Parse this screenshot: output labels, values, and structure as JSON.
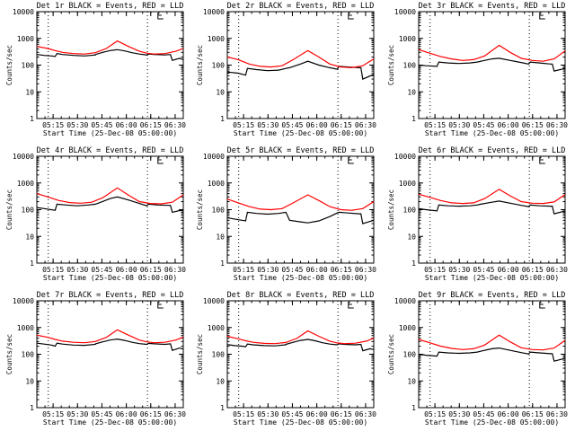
{
  "chart_data": [
    {
      "type": "line",
      "title": "Det 1r BLACK = Events, RED = LLD",
      "xlabel": "Start Time (25-Dec-08 05:00:00)",
      "ylabel": "Counts/sec",
      "yscale": "log",
      "ylim": [
        1,
        10000
      ],
      "xlim": [
        0.2,
        0.6
      ],
      "x_ticks": [
        "05:15",
        "05:30",
        "05:45",
        "06:00",
        "06:15",
        "06:30"
      ],
      "y_ticks": [
        "1",
        "10",
        "100",
        "1000",
        "10000"
      ],
      "vertical_dotted_lines": [
        "05:12",
        "06:13"
      ],
      "series": [
        {
          "color": "#000000",
          "x": [
            0.2,
            0.22,
            0.24,
            0.25,
            0.255,
            0.27,
            0.3,
            0.33,
            0.36,
            0.36,
            0.38,
            0.4,
            0.42,
            0.44,
            0.46,
            0.48,
            0.5,
            0.505,
            0.52,
            0.55,
            0.565,
            0.57,
            0.59,
            0.6
          ],
          "y": [
            250,
            230,
            220,
            210,
            270,
            250,
            230,
            220,
            240,
            250,
            300,
            350,
            380,
            340,
            290,
            260,
            240,
            260,
            250,
            240,
            250,
            150,
            180,
            160
          ]
        },
        {
          "color": "#ff0000",
          "x": [
            0.2,
            0.23,
            0.25,
            0.27,
            0.3,
            0.33,
            0.36,
            0.39,
            0.42,
            0.45,
            0.48,
            0.5,
            0.52,
            0.55,
            0.58,
            0.6
          ],
          "y": [
            500,
            420,
            350,
            300,
            270,
            260,
            290,
            420,
            800,
            500,
            330,
            280,
            260,
            270,
            330,
            420
          ]
        }
      ]
    },
    {
      "type": "line",
      "title": "Det 2r BLACK = Events, RED = LLD",
      "xlabel": "Start Time (25-Dec-08 05:00:00)",
      "ylabel": "Counts/sec",
      "yscale": "log",
      "ylim": [
        1,
        10000
      ],
      "xlim": [
        0.2,
        0.6
      ],
      "x_ticks": [
        "05:15",
        "05:30",
        "05:45",
        "06:00",
        "06:15",
        "06:30"
      ],
      "y_ticks": [
        "1",
        "10",
        "100",
        "1000",
        "10000"
      ],
      "vertical_dotted_lines": [
        "05:12",
        "06:13"
      ],
      "series": [
        {
          "color": "#000000",
          "x": [
            0.2,
            0.23,
            0.25,
            0.255,
            0.28,
            0.31,
            0.34,
            0.36,
            0.37,
            0.4,
            0.42,
            0.45,
            0.48,
            0.5,
            0.505,
            0.53,
            0.56,
            0.565,
            0.57,
            0.6
          ],
          "y": [
            55,
            50,
            42,
            75,
            68,
            62,
            65,
            75,
            80,
            110,
            140,
            100,
            80,
            70,
            90,
            85,
            80,
            80,
            30,
            45
          ]
        },
        {
          "color": "#ff0000",
          "x": [
            0.2,
            0.23,
            0.26,
            0.29,
            0.32,
            0.35,
            0.38,
            0.42,
            0.45,
            0.48,
            0.51,
            0.54,
            0.57,
            0.6
          ],
          "y": [
            200,
            160,
            110,
            90,
            85,
            95,
            160,
            350,
            200,
            110,
            85,
            80,
            95,
            170
          ]
        }
      ]
    },
    {
      "type": "line",
      "title": "Det 3r BLACK = Events, RED = LLD",
      "xlabel": "Start Time (25-Dec-08 05:00:00)",
      "ylabel": "Counts/sec",
      "yscale": "log",
      "ylim": [
        1,
        10000
      ],
      "xlim": [
        0.2,
        0.6
      ],
      "x_ticks": [
        "05:15",
        "05:30",
        "05:45",
        "06:00",
        "06:15",
        "06:30"
      ],
      "y_ticks": [
        "1",
        "10",
        "100",
        "1000",
        "10000"
      ],
      "vertical_dotted_lines": [
        "05:12",
        "06:13"
      ],
      "series": [
        {
          "color": "#000000",
          "x": [
            0.2,
            0.22,
            0.25,
            0.255,
            0.28,
            0.31,
            0.34,
            0.36,
            0.37,
            0.4,
            0.42,
            0.45,
            0.48,
            0.5,
            0.505,
            0.53,
            0.56,
            0.565,
            0.57,
            0.6
          ],
          "y": [
            100,
            95,
            90,
            130,
            120,
            115,
            120,
            130,
            140,
            170,
            180,
            150,
            125,
            110,
            130,
            120,
            110,
            110,
            60,
            75
          ]
        },
        {
          "color": "#ff0000",
          "x": [
            0.2,
            0.23,
            0.26,
            0.29,
            0.32,
            0.35,
            0.38,
            0.42,
            0.45,
            0.48,
            0.51,
            0.54,
            0.57,
            0.6
          ],
          "y": [
            380,
            280,
            210,
            170,
            150,
            160,
            220,
            550,
            300,
            180,
            150,
            140,
            170,
            340
          ]
        }
      ]
    },
    {
      "type": "line",
      "title": "Det 4r BLACK = Events, RED = LLD",
      "xlabel": "Start Time (25-Dec-08 05:00:00)",
      "ylabel": "Counts/sec",
      "yscale": "log",
      "ylim": [
        1,
        10000
      ],
      "xlim": [
        0.2,
        0.6
      ],
      "x_ticks": [
        "05:15",
        "05:30",
        "05:45",
        "06:00",
        "06:15",
        "06:30"
      ],
      "y_ticks": [
        "1",
        "10",
        "100",
        "1000",
        "10000"
      ],
      "vertical_dotted_lines": [
        "05:12",
        "06:13"
      ],
      "series": [
        {
          "color": "#000000",
          "x": [
            0.2,
            0.22,
            0.25,
            0.255,
            0.28,
            0.31,
            0.34,
            0.36,
            0.37,
            0.4,
            0.42,
            0.45,
            0.48,
            0.5,
            0.505,
            0.53,
            0.56,
            0.565,
            0.57,
            0.6
          ],
          "y": [
            120,
            110,
            95,
            160,
            150,
            140,
            150,
            160,
            180,
            260,
            300,
            230,
            170,
            140,
            160,
            150,
            145,
            145,
            80,
            100
          ]
        },
        {
          "color": "#ff0000",
          "x": [
            0.2,
            0.23,
            0.26,
            0.29,
            0.32,
            0.35,
            0.38,
            0.42,
            0.45,
            0.48,
            0.51,
            0.54,
            0.57,
            0.6
          ],
          "y": [
            400,
            300,
            220,
            185,
            175,
            190,
            280,
            650,
            350,
            200,
            170,
            165,
            190,
            360
          ]
        }
      ]
    },
    {
      "type": "line",
      "title": "Det 5r BLACK = Events, RED = LLD",
      "xlabel": "Start Time (25-Dec-08 05:00:00)",
      "ylabel": "Counts/sec",
      "yscale": "log",
      "ylim": [
        1,
        10000
      ],
      "xlim": [
        0.2,
        0.6
      ],
      "x_ticks": [
        "05:15",
        "05:30",
        "05:45",
        "06:00",
        "06:15",
        "06:30"
      ],
      "y_ticks": [
        "1",
        "10",
        "100",
        "1000",
        "10000"
      ],
      "vertical_dotted_lines": [
        "05:12",
        "06:13"
      ],
      "series": [
        {
          "color": "#000000",
          "x": [
            0.2,
            0.23,
            0.25,
            0.255,
            0.28,
            0.31,
            0.34,
            0.36,
            0.37,
            0.4,
            0.42,
            0.45,
            0.48,
            0.5,
            0.505,
            0.53,
            0.56,
            0.565,
            0.57,
            0.6
          ],
          "y": [
            50,
            42,
            38,
            80,
            72,
            68,
            72,
            80,
            40,
            35,
            32,
            38,
            55,
            75,
            80,
            75,
            70,
            70,
            30,
            40
          ]
        },
        {
          "color": "#ff0000",
          "x": [
            0.2,
            0.23,
            0.26,
            0.29,
            0.32,
            0.35,
            0.38,
            0.42,
            0.45,
            0.48,
            0.51,
            0.54,
            0.57,
            0.6
          ],
          "y": [
            250,
            180,
            130,
            105,
            100,
            110,
            180,
            360,
            220,
            130,
            100,
            95,
            110,
            200
          ]
        }
      ]
    },
    {
      "type": "line",
      "title": "Det 6r BLACK = Events, RED = LLD",
      "xlabel": "Start Time (25-Dec-08 05:00:00)",
      "ylabel": "Counts/sec",
      "yscale": "log",
      "ylim": [
        1,
        10000
      ],
      "xlim": [
        0.2,
        0.6
      ],
      "x_ticks": [
        "05:15",
        "05:30",
        "05:45",
        "06:00",
        "06:15",
        "06:30"
      ],
      "y_ticks": [
        "1",
        "10",
        "100",
        "1000",
        "10000"
      ],
      "vertical_dotted_lines": [
        "05:12",
        "06:13"
      ],
      "series": [
        {
          "color": "#000000",
          "x": [
            0.2,
            0.22,
            0.25,
            0.255,
            0.28,
            0.31,
            0.34,
            0.36,
            0.37,
            0.4,
            0.42,
            0.45,
            0.48,
            0.5,
            0.505,
            0.53,
            0.56,
            0.565,
            0.57,
            0.6
          ],
          "y": [
            110,
            100,
            90,
            150,
            140,
            135,
            140,
            150,
            160,
            190,
            210,
            175,
            145,
            130,
            150,
            140,
            135,
            135,
            70,
            90
          ]
        },
        {
          "color": "#ff0000",
          "x": [
            0.2,
            0.23,
            0.26,
            0.29,
            0.32,
            0.35,
            0.38,
            0.42,
            0.45,
            0.48,
            0.51,
            0.54,
            0.57,
            0.6
          ],
          "y": [
            380,
            290,
            220,
            180,
            170,
            180,
            260,
            580,
            330,
            200,
            175,
            170,
            195,
            370
          ]
        }
      ]
    },
    {
      "type": "line",
      "title": "Det 7r BLACK = Events, RED = LLD",
      "xlabel": "Start Time (25-Dec-08 05:00:00)",
      "ylabel": "Counts/sec",
      "yscale": "log",
      "ylim": [
        1,
        10000
      ],
      "xlim": [
        0.2,
        0.6
      ],
      "x_ticks": [
        "05:15",
        "05:30",
        "05:45",
        "06:00",
        "06:15",
        "06:30"
      ],
      "y_ticks": [
        "1",
        "10",
        "100",
        "1000",
        "10000"
      ],
      "vertical_dotted_lines": [
        "05:12",
        "06:13"
      ],
      "series": [
        {
          "color": "#000000",
          "x": [
            0.2,
            0.22,
            0.24,
            0.25,
            0.255,
            0.27,
            0.3,
            0.33,
            0.36,
            0.36,
            0.38,
            0.4,
            0.42,
            0.44,
            0.46,
            0.48,
            0.5,
            0.505,
            0.52,
            0.55,
            0.565,
            0.57,
            0.59,
            0.6
          ],
          "y": [
            260,
            240,
            220,
            200,
            260,
            240,
            220,
            215,
            235,
            245,
            290,
            340,
            370,
            330,
            280,
            250,
            235,
            255,
            245,
            235,
            245,
            140,
            170,
            155
          ]
        },
        {
          "color": "#ff0000",
          "x": [
            0.2,
            0.23,
            0.25,
            0.27,
            0.3,
            0.33,
            0.36,
            0.39,
            0.42,
            0.45,
            0.48,
            0.5,
            0.52,
            0.55,
            0.58,
            0.6
          ],
          "y": [
            520,
            430,
            360,
            310,
            280,
            270,
            300,
            430,
            820,
            520,
            340,
            290,
            270,
            280,
            340,
            440
          ]
        }
      ]
    },
    {
      "type": "line",
      "title": "Det 8r BLACK = Events, RED = LLD",
      "xlabel": "Start Time (25-Dec-08 05:00:00)",
      "ylabel": "Counts/sec",
      "yscale": "log",
      "ylim": [
        1,
        10000
      ],
      "xlim": [
        0.2,
        0.6
      ],
      "x_ticks": [
        "05:15",
        "05:30",
        "05:45",
        "06:00",
        "06:15",
        "06:30"
      ],
      "y_ticks": [
        "1",
        "10",
        "100",
        "1000",
        "10000"
      ],
      "vertical_dotted_lines": [
        "05:12",
        "06:13"
      ],
      "series": [
        {
          "color": "#000000",
          "x": [
            0.2,
            0.22,
            0.24,
            0.25,
            0.255,
            0.27,
            0.3,
            0.33,
            0.36,
            0.36,
            0.38,
            0.4,
            0.42,
            0.44,
            0.46,
            0.48,
            0.5,
            0.505,
            0.52,
            0.55,
            0.565,
            0.57,
            0.59,
            0.6
          ],
          "y": [
            230,
            210,
            200,
            190,
            240,
            225,
            210,
            205,
            225,
            235,
            280,
            330,
            360,
            320,
            270,
            240,
            225,
            245,
            235,
            225,
            235,
            135,
            160,
            150
          ]
        },
        {
          "color": "#ff0000",
          "x": [
            0.2,
            0.23,
            0.25,
            0.27,
            0.3,
            0.33,
            0.36,
            0.39,
            0.42,
            0.45,
            0.48,
            0.5,
            0.52,
            0.55,
            0.58,
            0.6
          ],
          "y": [
            470,
            380,
            320,
            280,
            255,
            250,
            275,
            390,
            750,
            470,
            310,
            265,
            250,
            260,
            310,
            400
          ]
        }
      ]
    },
    {
      "type": "line",
      "title": "Det 9r BLACK = Events, RED = LLD",
      "xlabel": "Start Time (25-Dec-08 05:00:00)",
      "ylabel": "Counts/sec",
      "yscale": "log",
      "ylim": [
        1,
        10000
      ],
      "xlim": [
        0.2,
        0.6
      ],
      "x_ticks": [
        "05:15",
        "05:30",
        "05:45",
        "06:00",
        "06:15",
        "06:30"
      ],
      "y_ticks": [
        "1",
        "10",
        "100",
        "1000",
        "10000"
      ],
      "vertical_dotted_lines": [
        "05:12",
        "06:13"
      ],
      "series": [
        {
          "color": "#000000",
          "x": [
            0.2,
            0.22,
            0.25,
            0.255,
            0.28,
            0.31,
            0.34,
            0.36,
            0.37,
            0.4,
            0.42,
            0.45,
            0.48,
            0.5,
            0.505,
            0.53,
            0.56,
            0.565,
            0.57,
            0.6
          ],
          "y": [
            100,
            92,
            85,
            120,
            112,
            108,
            112,
            120,
            130,
            160,
            170,
            140,
            115,
            102,
            120,
            112,
            105,
            105,
            55,
            70
          ]
        },
        {
          "color": "#ff0000",
          "x": [
            0.2,
            0.23,
            0.26,
            0.29,
            0.32,
            0.35,
            0.38,
            0.42,
            0.45,
            0.48,
            0.51,
            0.54,
            0.57,
            0.6
          ],
          "y": [
            360,
            270,
            200,
            165,
            150,
            160,
            220,
            520,
            290,
            175,
            150,
            145,
            170,
            330
          ]
        }
      ]
    }
  ]
}
